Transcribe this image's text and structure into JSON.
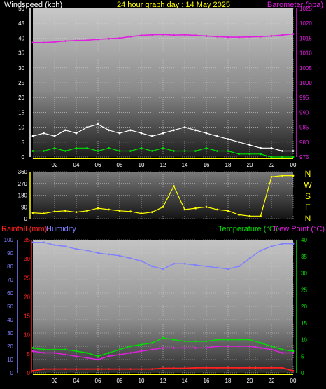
{
  "header": {
    "left_title": "Windspeed (kph)",
    "center_title": "24 hour graph day : 14 May 2025",
    "right_title": "Barometer (hpa)"
  },
  "colors": {
    "background": "#000000",
    "wind": "#ffffff",
    "wind_avg": "#00e000",
    "barometer": "#e020e0",
    "direction": "#ffff00",
    "rain": "#ff2020",
    "humidity": "#8080ff",
    "temperature": "#00e000",
    "dewpoint": "#e020e0",
    "time_axis": "#ffff00"
  },
  "x_ticks": [
    "02",
    "04",
    "06",
    "08",
    "10",
    "12",
    "14",
    "16",
    "18",
    "20",
    "22",
    "00"
  ],
  "wind_panel": {
    "left_ticks": [
      "0",
      "5",
      "10",
      "15",
      "20",
      "25",
      "30",
      "35",
      "40",
      "45",
      "50"
    ],
    "right_ticks": [
      "975",
      "980",
      "985",
      "990",
      "995",
      "1000",
      "1005",
      "1010",
      "1015",
      "1020",
      "1025"
    ]
  },
  "direction_panel": {
    "degree_ticks": [
      "0",
      "90",
      "180",
      "270",
      "360"
    ],
    "compass": [
      "N",
      "W",
      "S",
      "E",
      "N"
    ]
  },
  "lower_panel": {
    "left_label_rain": "Rainfall (mm)",
    "left_label_humidity": "Humidity",
    "right_label_temp": "Temperature (°C)",
    "right_label_dew": "Dew Point (°C)",
    "humidity_ticks": [
      "0",
      "10",
      "20",
      "30",
      "40",
      "50",
      "60",
      "70",
      "80",
      "90",
      "100"
    ],
    "rain_ticks": [
      "0",
      "5",
      "10",
      "15",
      "20",
      "25",
      "30",
      "35"
    ],
    "temp_ticks": [
      "0",
      "5",
      "10",
      "15",
      "20",
      "25",
      "30",
      "35",
      "40"
    ]
  },
  "chart_data": [
    {
      "type": "line",
      "name": "wind-barometer",
      "x": [
        0,
        1,
        2,
        3,
        4,
        5,
        6,
        7,
        8,
        9,
        10,
        11,
        12,
        13,
        14,
        15,
        16,
        17,
        18,
        19,
        20,
        21,
        22,
        23,
        24
      ],
      "xlim": [
        0,
        24
      ],
      "ylim": [
        0,
        50
      ],
      "y2lim": [
        975,
        1025
      ],
      "series": [
        {
          "name": "Windspeed (kph)",
          "values": [
            7,
            8,
            7,
            9,
            8,
            10,
            11,
            9,
            8,
            9,
            8,
            7,
            8,
            9,
            10,
            9,
            8,
            7,
            6,
            5,
            4,
            3,
            3,
            2,
            2
          ]
        },
        {
          "name": "",
          "values": [
            2,
            2,
            3,
            2,
            3,
            3,
            2,
            3,
            2,
            2,
            3,
            2,
            3,
            2,
            2,
            2,
            3,
            2,
            2,
            1,
            1,
            1,
            0,
            0,
            0
          ]
        },
        {
          "name": "Barometer (hpa)",
          "axis": "right",
          "values": [
            1013.5,
            1013.5,
            1013.7,
            1014.0,
            1014.2,
            1014.3,
            1014.6,
            1014.8,
            1015.0,
            1015.5,
            1015.9,
            1016.1,
            1016.2,
            1016.0,
            1016.1,
            1015.9,
            1015.7,
            1015.5,
            1015.3,
            1015.3,
            1015.4,
            1015.5,
            1015.7,
            1016.0,
            1016.4
          ]
        }
      ]
    },
    {
      "type": "line",
      "name": "wind-direction",
      "x": [
        0,
        1,
        2,
        3,
        4,
        5,
        6,
        7,
        8,
        9,
        10,
        11,
        12,
        13,
        14,
        15,
        16,
        17,
        18,
        19,
        20,
        21,
        22,
        23,
        24
      ],
      "xlim": [
        0,
        24
      ],
      "ylim": [
        0,
        360
      ],
      "series": [
        {
          "name": "",
          "values": [
            45,
            40,
            55,
            60,
            50,
            60,
            80,
            70,
            60,
            55,
            40,
            50,
            90,
            250,
            70,
            80,
            90,
            70,
            60,
            30,
            20,
            20,
            320,
            330,
            330
          ]
        }
      ]
    },
    {
      "type": "line",
      "name": "rain-humidity-temperature",
      "x": [
        0,
        1,
        2,
        3,
        4,
        5,
        6,
        7,
        8,
        9,
        10,
        11,
        12,
        13,
        14,
        15,
        16,
        17,
        18,
        19,
        20,
        21,
        22,
        23,
        24
      ],
      "xlim": [
        0,
        24
      ],
      "series": [
        {
          "name": "Humidity",
          "axis": "humidity",
          "ylim": [
            0,
            100
          ],
          "values": [
            98,
            98,
            96,
            95,
            93,
            92,
            90,
            89,
            88,
            86,
            84,
            80,
            78,
            82,
            82,
            81,
            80,
            79,
            78,
            80,
            86,
            92,
            95,
            97,
            97
          ]
        },
        {
          "name": "Rainfall (mm)",
          "axis": "rain",
          "ylim": [
            0,
            35
          ],
          "values": [
            0.5,
            1,
            1,
            1,
            1,
            1,
            1,
            1,
            1,
            1,
            1,
            1,
            1.2,
            1.2,
            1.2,
            1.3,
            1.3,
            1.3,
            1.3,
            1.3,
            1.3,
            1.3,
            1.3,
            1.3,
            0.5
          ]
        },
        {
          "name": "Temperature (°C)",
          "axis": "temp",
          "ylim": [
            0,
            40
          ],
          "values": [
            7.5,
            7,
            7,
            7,
            6.5,
            6,
            5,
            6,
            7,
            8,
            8.5,
            9,
            10.5,
            10,
            9.5,
            9.5,
            9.5,
            10,
            10,
            10,
            10,
            9,
            8,
            7,
            6.5
          ]
        },
        {
          "name": "Dew Point (°C)",
          "axis": "temp",
          "ylim": [
            0,
            40
          ],
          "values": [
            6.5,
            6,
            6,
            5.5,
            5,
            4.5,
            4,
            5,
            5.5,
            6,
            6.5,
            7,
            7.5,
            7.5,
            7.5,
            7.5,
            7.5,
            8,
            8,
            8,
            8,
            7.5,
            7,
            6,
            6
          ]
        }
      ],
      "markers_x": [
        6.3,
        20.5
      ]
    }
  ]
}
